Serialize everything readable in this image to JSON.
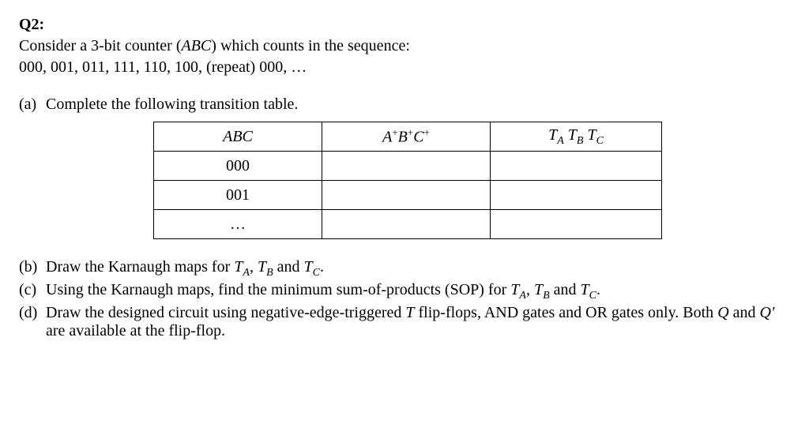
{
  "heading": "Q2:",
  "intro_line1_pre": "Consider a 3-bit counter (",
  "intro_line1_var": "ABC",
  "intro_line1_post": ") which counts in the sequence:",
  "sequence": "000, 001, 011, 111, 110, 100, (repeat) 000, …",
  "parts": {
    "a": {
      "label": "(a)",
      "text": "Complete the following transition table."
    },
    "b": {
      "label": "(b)",
      "text_pre": "Draw the Karnaugh maps for ",
      "t": "T",
      "a": "A",
      "comma1": ", ",
      "b2": "B",
      "and": " and ",
      "c": "C",
      "dot": "."
    },
    "c": {
      "label": "(c)",
      "text_pre": "Using the Karnaugh maps, find the minimum sum-of-products (SOP) for ",
      "t": "T",
      "a": "A",
      "comma1": ", ",
      "b2": "B",
      "and": " and ",
      "c2": "C",
      "dot": "."
    },
    "d": {
      "label": "(d)",
      "text_pre": "Draw the designed circuit using negative-edge-triggered ",
      "tflip": "T",
      "mid": " flip-flops, AND gates and OR gates only. Both ",
      "q": "Q",
      "and2": " and ",
      "qp": "Q'",
      "post": " are available at the flip-flop."
    }
  },
  "table": {
    "header": {
      "col1": "ABC",
      "col2_a": "A",
      "col2_plus": "+",
      "col2_b": "B",
      "col2_c": "C",
      "col3_t": "T",
      "col3_a": "A",
      "col3_b": "B",
      "col3_c": "C"
    },
    "rows": [
      {
        "c1": "000",
        "c2": "",
        "c3": ""
      },
      {
        "c1": "001",
        "c2": "",
        "c3": ""
      },
      {
        "c1": "…",
        "c2": "",
        "c3": ""
      }
    ]
  }
}
